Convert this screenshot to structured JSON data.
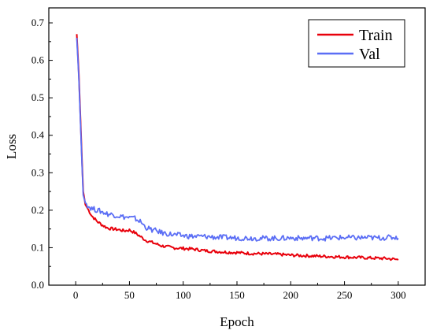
{
  "chart_data": {
    "type": "line",
    "title": "",
    "xlabel": "Epoch",
    "ylabel": "Loss",
    "xlim": [
      -25,
      325
    ],
    "ylim": [
      0.0,
      0.74
    ],
    "xticks": [
      "0",
      "50",
      "100",
      "150",
      "200",
      "250",
      "300"
    ],
    "yticks": [
      "0.0",
      "0.1",
      "0.2",
      "0.3",
      "0.4",
      "0.5",
      "0.6",
      "0.7"
    ],
    "grid": false,
    "legend": "top-right",
    "series": [
      {
        "name": "Train",
        "color": "#e8000b",
        "x": [
          1,
          3,
          5,
          7,
          9,
          12,
          15,
          20,
          25,
          30,
          35,
          40,
          45,
          50,
          55,
          60,
          65,
          70,
          80,
          90,
          100,
          110,
          120,
          130,
          140,
          150,
          160,
          170,
          180,
          190,
          200,
          210,
          220,
          230,
          240,
          250,
          260,
          270,
          280,
          290,
          300
        ],
        "values": [
          0.67,
          0.56,
          0.4,
          0.25,
          0.215,
          0.2,
          0.185,
          0.17,
          0.16,
          0.152,
          0.15,
          0.148,
          0.145,
          0.147,
          0.14,
          0.13,
          0.12,
          0.115,
          0.105,
          0.1,
          0.098,
          0.096,
          0.092,
          0.09,
          0.088,
          0.087,
          0.085,
          0.084,
          0.083,
          0.082,
          0.08,
          0.079,
          0.078,
          0.077,
          0.076,
          0.075,
          0.074,
          0.073,
          0.072,
          0.071,
          0.068
        ]
      },
      {
        "name": "Val",
        "color": "#5b6ef5",
        "x": [
          1,
          3,
          5,
          7,
          9,
          12,
          15,
          20,
          25,
          30,
          35,
          40,
          45,
          50,
          55,
          60,
          65,
          70,
          75,
          80,
          90,
          100,
          110,
          120,
          130,
          140,
          150,
          160,
          170,
          180,
          190,
          200,
          210,
          220,
          230,
          240,
          250,
          260,
          270,
          280,
          290,
          300
        ],
        "values": [
          0.66,
          0.55,
          0.39,
          0.24,
          0.22,
          0.21,
          0.205,
          0.2,
          0.195,
          0.19,
          0.188,
          0.185,
          0.182,
          0.18,
          0.178,
          0.17,
          0.155,
          0.148,
          0.145,
          0.14,
          0.135,
          0.132,
          0.13,
          0.13,
          0.128,
          0.127,
          0.126,
          0.126,
          0.125,
          0.125,
          0.125,
          0.126,
          0.125,
          0.126,
          0.125,
          0.126,
          0.127,
          0.126,
          0.127,
          0.126,
          0.127,
          0.128
        ]
      }
    ]
  }
}
